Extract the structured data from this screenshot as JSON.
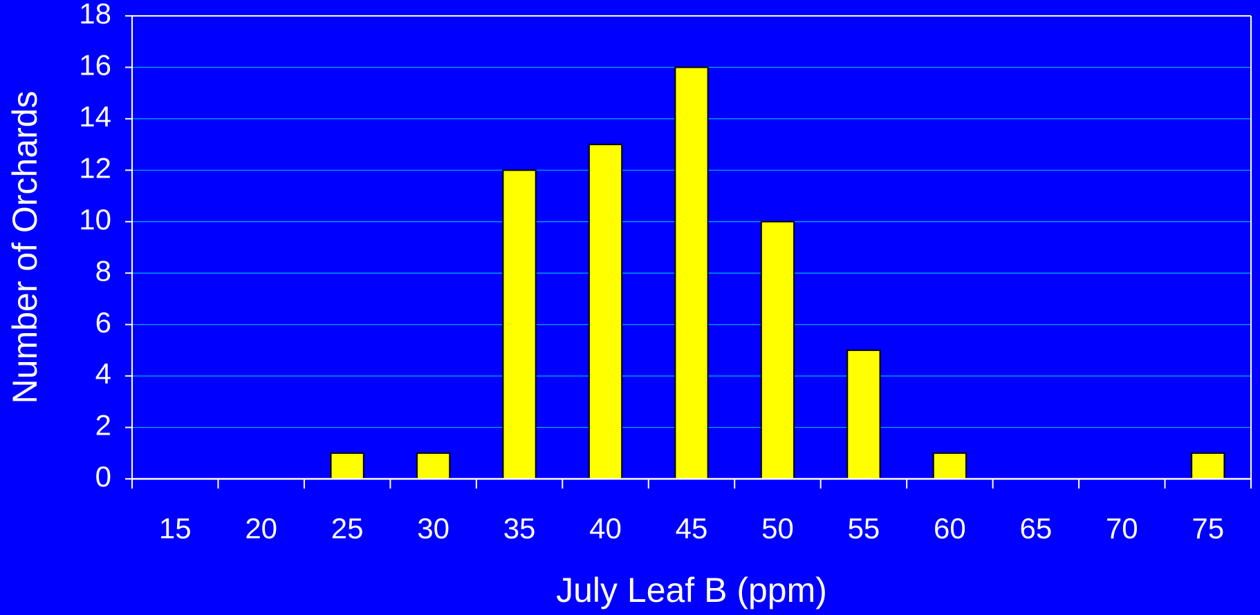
{
  "chart_data": {
    "type": "bar",
    "x_label": "July Leaf B (ppm)",
    "y_label": "Number of Orchards",
    "categories": [
      "15",
      "20",
      "25",
      "30",
      "35",
      "40",
      "45",
      "50",
      "55",
      "60",
      "65",
      "70",
      "75"
    ],
    "values": [
      0,
      0,
      1,
      1,
      12,
      13,
      16,
      10,
      5,
      1,
      0,
      0,
      1
    ],
    "color": "#ffff00",
    "ylim": [
      0,
      18
    ],
    "yticks": [
      0,
      2,
      4,
      6,
      8,
      10,
      12,
      14,
      16,
      18
    ],
    "grid": true
  }
}
